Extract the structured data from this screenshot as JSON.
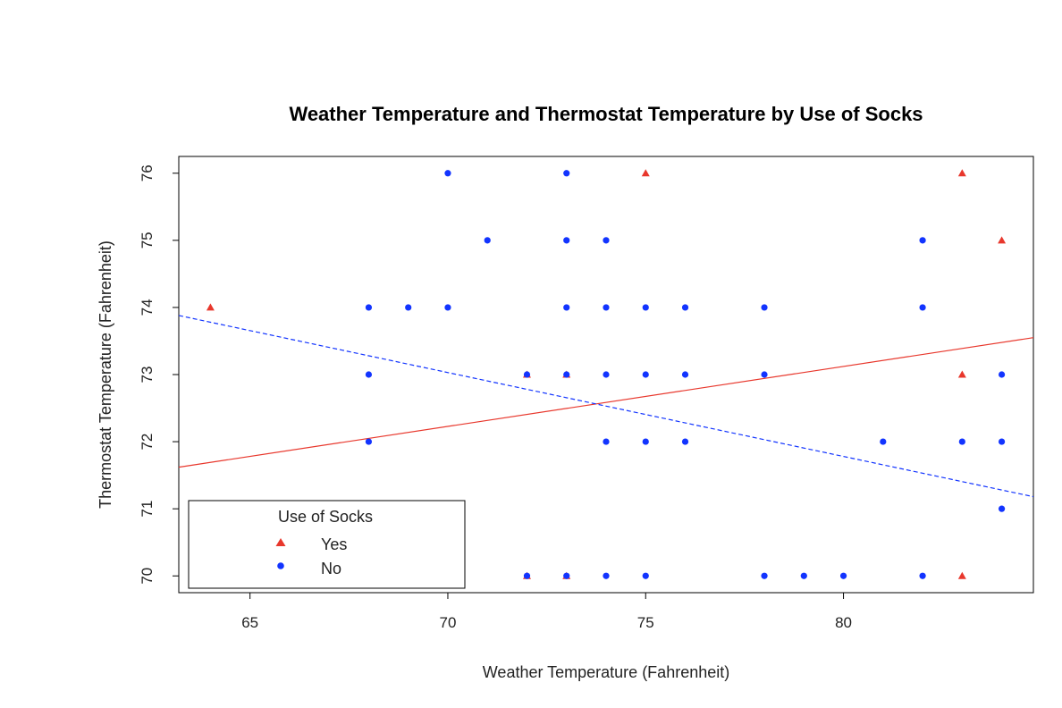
{
  "colors": {
    "yes": "#e8372c",
    "no": "#1234ff"
  },
  "chart_data": {
    "type": "scatter",
    "title": "Weather Temperature and Thermostat Temperature by Use of Socks",
    "xlabel": "Weather Temperature (Fahrenheit)",
    "ylabel": "Thermostat Temperature (Fahrenheit)",
    "xlim": [
      63.2,
      84.8
    ],
    "ylim": [
      69.75,
      76.25
    ],
    "x_ticks": [
      65,
      70,
      75,
      80
    ],
    "y_ticks": [
      70,
      71,
      72,
      73,
      74,
      75,
      76
    ],
    "grid": false,
    "legend": {
      "title": "Use of Socks",
      "position": "bottom-left"
    },
    "series": [
      {
        "name": "Yes",
        "marker": "triangle",
        "color": "#e8372c",
        "points": [
          [
            64,
            74
          ],
          [
            72,
            73
          ],
          [
            72,
            70
          ],
          [
            73,
            73
          ],
          [
            73,
            70
          ],
          [
            75,
            76
          ],
          [
            83,
            76
          ],
          [
            83,
            73
          ],
          [
            83,
            70
          ],
          [
            84,
            75
          ]
        ],
        "fit": {
          "style": "solid",
          "x": [
            63.2,
            84.8
          ],
          "y": [
            71.62,
            73.55
          ]
        }
      },
      {
        "name": "No",
        "marker": "circle",
        "color": "#1234ff",
        "points": [
          [
            68,
            74
          ],
          [
            68,
            73
          ],
          [
            68,
            72
          ],
          [
            69,
            74
          ],
          [
            70,
            76
          ],
          [
            70,
            74
          ],
          [
            71,
            75
          ],
          [
            72,
            73
          ],
          [
            72,
            70
          ],
          [
            73,
            76
          ],
          [
            73,
            75
          ],
          [
            73,
            74
          ],
          [
            73,
            73
          ],
          [
            73,
            70
          ],
          [
            74,
            75
          ],
          [
            74,
            74
          ],
          [
            74,
            73
          ],
          [
            74,
            72
          ],
          [
            74,
            70
          ],
          [
            75,
            74
          ],
          [
            75,
            73
          ],
          [
            75,
            72
          ],
          [
            75,
            70
          ],
          [
            76,
            74
          ],
          [
            76,
            73
          ],
          [
            76,
            72
          ],
          [
            78,
            74
          ],
          [
            78,
            73
          ],
          [
            78,
            70
          ],
          [
            79,
            70
          ],
          [
            80,
            70
          ],
          [
            81,
            72
          ],
          [
            82,
            75
          ],
          [
            82,
            74
          ],
          [
            82,
            70
          ],
          [
            83,
            72
          ],
          [
            84,
            73
          ],
          [
            84,
            72
          ],
          [
            84,
            71
          ]
        ],
        "fit": {
          "style": "dashed",
          "x": [
            63.2,
            84.8
          ],
          "y": [
            73.88,
            71.18
          ]
        }
      }
    ]
  }
}
